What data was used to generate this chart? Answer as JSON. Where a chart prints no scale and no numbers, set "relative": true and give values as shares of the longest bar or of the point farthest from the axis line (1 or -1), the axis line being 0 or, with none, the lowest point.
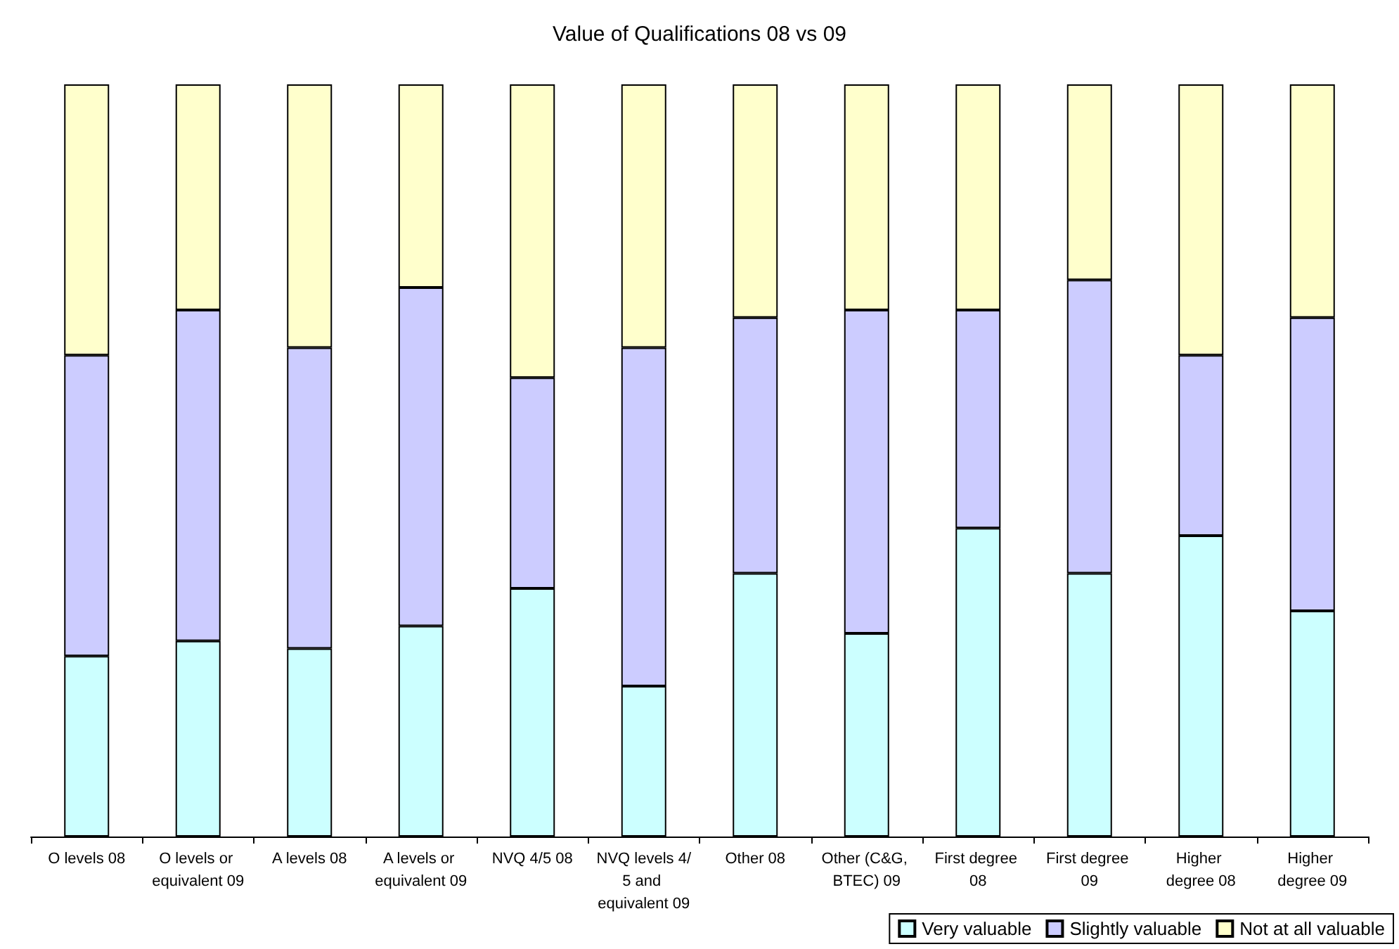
{
  "chart_data": {
    "type": "bar",
    "title": "Value of Qualifications 08 vs 09",
    "relative": true,
    "stacked": true,
    "legend": "bottom right",
    "categories": [
      "O levels 08",
      "O levels or equivalent 09",
      "A levels 08",
      "A levels or equivalent 09",
      "NVQ 4/5 08",
      "NVQ levels 4/5 and equivalent 09",
      "Other 08",
      "Other (C&G, BTEC) 09",
      "First degree 08",
      "First degree 09",
      "Higher degree 08",
      "Higher degree 09"
    ],
    "series": [
      {
        "name": "Very valuable",
        "color": "#ccffff",
        "values": [
          0.24,
          0.26,
          0.25,
          0.28,
          0.33,
          0.2,
          0.35,
          0.27,
          0.41,
          0.35,
          0.4,
          0.3
        ]
      },
      {
        "name": "Slightly valuable",
        "color": "#ccccff",
        "values": [
          0.4,
          0.44,
          0.4,
          0.45,
          0.28,
          0.45,
          0.34,
          0.43,
          0.29,
          0.39,
          0.24,
          0.39
        ]
      },
      {
        "name": "Not at all valuable",
        "color": "#ffffcc",
        "values": [
          0.36,
          0.3,
          0.35,
          0.27,
          0.39,
          0.35,
          0.31,
          0.3,
          0.3,
          0.26,
          0.36,
          0.31
        ]
      }
    ]
  }
}
